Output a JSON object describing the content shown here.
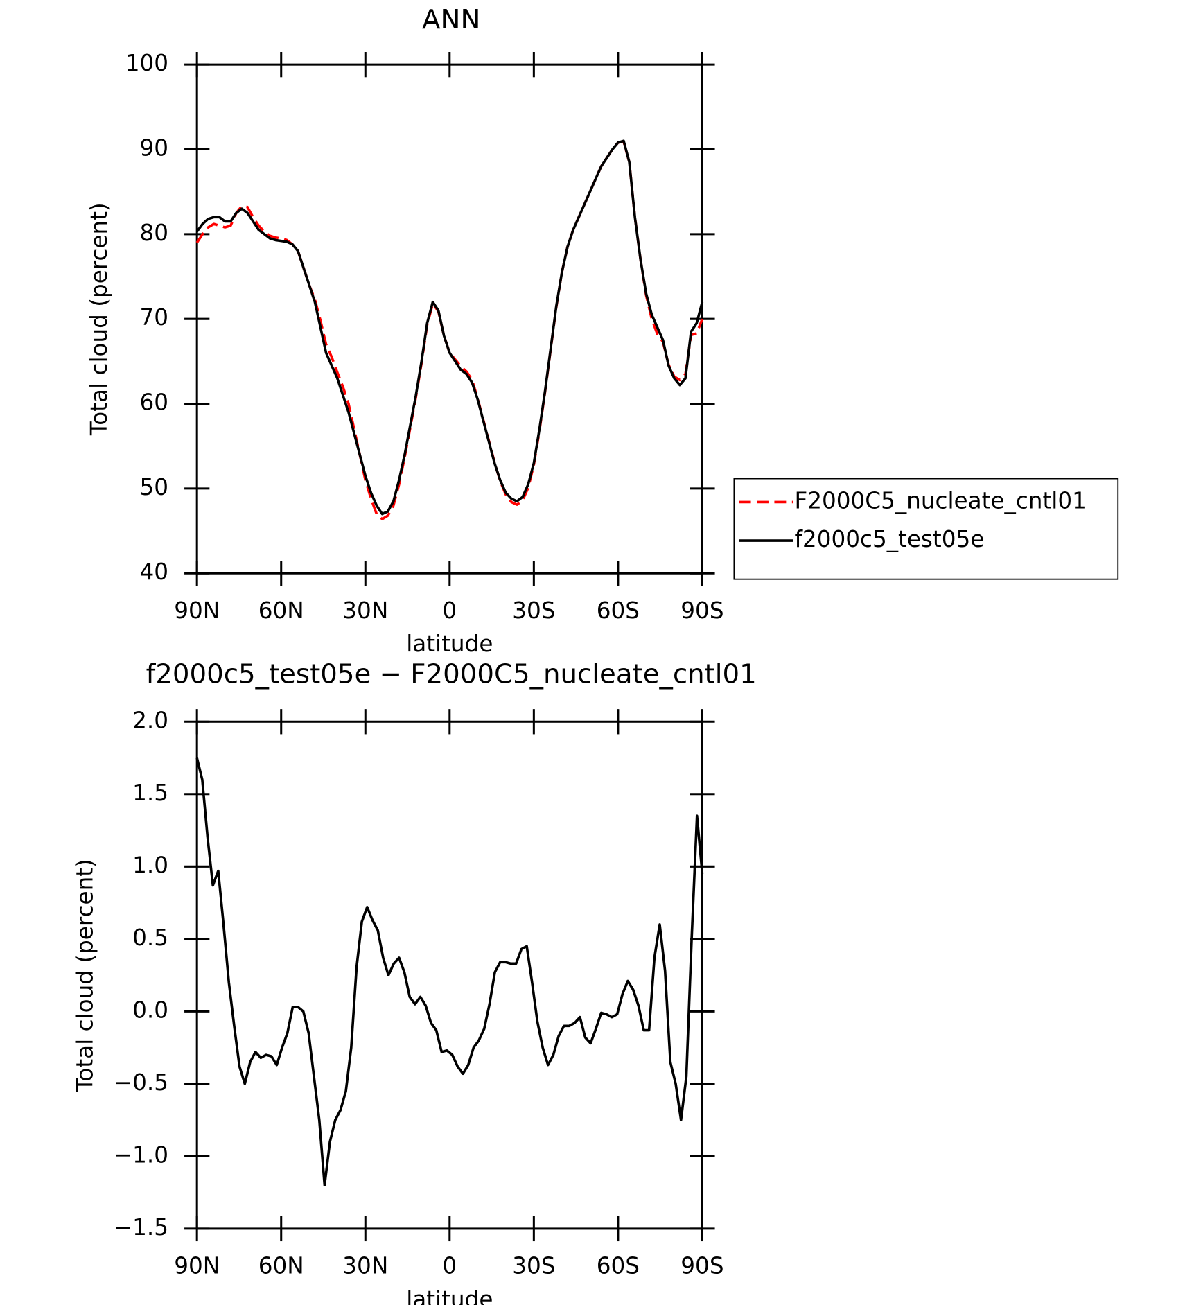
{
  "chart_data": [
    {
      "type": "line",
      "title": "ANN",
      "xlabel": "latitude",
      "ylabel": "Total cloud (percent)",
      "x": [
        90,
        88,
        86,
        84,
        82,
        80,
        78,
        76,
        74,
        72,
        70,
        68,
        66,
        64,
        62,
        60,
        58,
        56,
        54,
        52,
        50,
        48,
        46,
        44,
        42,
        40,
        38,
        36,
        34,
        32,
        30,
        28,
        26,
        24,
        22,
        20,
        18,
        16,
        14,
        12,
        10,
        8,
        6,
        4,
        2,
        0,
        -2,
        -4,
        -6,
        -8,
        -10,
        -12,
        -14,
        -16,
        -18,
        -20,
        -22,
        -24,
        -26,
        -28,
        -30,
        -32,
        -34,
        -36,
        -38,
        -40,
        -42,
        -44,
        -46,
        -48,
        -50,
        -52,
        -54,
        -56,
        -58,
        -60,
        -62,
        -64,
        -66,
        -68,
        -70,
        -72,
        -74,
        -76,
        -78,
        -80,
        -82,
        -84,
        -86,
        -88,
        -90
      ],
      "series": [
        {
          "name": "F2000C5_nucleate_cntl01",
          "color": "#ff0000",
          "dash": true,
          "values": [
            79,
            80,
            80.8,
            81.2,
            81,
            80.8,
            81,
            82.5,
            83.3,
            83.2,
            82,
            81,
            80.3,
            79.8,
            79.6,
            79.5,
            79.3,
            78.8,
            78,
            76,
            74,
            72.3,
            69.8,
            67,
            65.5,
            63.7,
            62,
            60,
            57,
            54,
            51,
            48.8,
            47,
            46.4,
            46.8,
            48,
            50.5,
            53.7,
            57.2,
            60.8,
            64.8,
            69.3,
            71.8,
            70.9,
            68,
            66,
            65.2,
            64.4,
            63.8,
            62.8,
            60.6,
            58.1,
            55.6,
            53.1,
            50.9,
            49.3,
            48.4,
            48.1,
            48.6,
            50.1,
            52.8,
            56.8,
            61.4,
            66.4,
            71.4,
            75.5,
            78.5,
            80.5,
            82,
            83.5,
            85,
            86.5,
            88,
            89,
            90,
            90.8,
            90.9,
            88.5,
            82,
            77,
            72.8,
            70,
            68.2,
            67.3,
            64.6,
            63.2,
            62.8,
            63.5,
            68.1,
            68.3,
            70
          ]
        },
        {
          "name": "f2000c5_test05e",
          "color": "#000000",
          "dash": false,
          "values": [
            80.3,
            81.2,
            81.8,
            82,
            82,
            81.5,
            81.5,
            82.5,
            83,
            82.5,
            81.5,
            80.5,
            80,
            79.5,
            79.3,
            79.2,
            79.1,
            78.8,
            78,
            76,
            74,
            72,
            69,
            66,
            64.5,
            63,
            61,
            59,
            56.5,
            54,
            51.5,
            49.5,
            48,
            47,
            47.3,
            48.5,
            51,
            54,
            57.5,
            61,
            65,
            69.5,
            72,
            71,
            68,
            66,
            65,
            64,
            63.5,
            62.5,
            60.5,
            58,
            55.5,
            53,
            51,
            49.5,
            48.8,
            48.5,
            49,
            50.5,
            53,
            57,
            61.5,
            66.5,
            71.5,
            75.5,
            78.5,
            80.5,
            82,
            83.5,
            85,
            86.5,
            88,
            89,
            90,
            90.8,
            91,
            88.5,
            82,
            77,
            73,
            70.5,
            69,
            67.5,
            64.5,
            63,
            62.2,
            63,
            68.5,
            69.5,
            72
          ]
        }
      ],
      "xlim": [
        90,
        -90
      ],
      "xticks": [
        {
          "value": 90,
          "label": "90N"
        },
        {
          "value": 60,
          "label": "60N"
        },
        {
          "value": 30,
          "label": "30N"
        },
        0,
        {
          "value": -30,
          "label": "30S"
        },
        {
          "value": -60,
          "label": "60S"
        },
        {
          "value": -90,
          "label": "90S"
        }
      ],
      "ylim": [
        40,
        100
      ],
      "yticks": [
        40,
        50,
        60,
        70,
        80,
        90,
        100
      ],
      "legend": "outside right",
      "grid": false
    },
    {
      "type": "line",
      "title": "f2000c5_test05e − F2000C5_nucleate_cntl01",
      "xlabel": "latitude",
      "ylabel": "Total cloud (percent)",
      "x": [
        90,
        88.11,
        86.21,
        84.32,
        82.42,
        80.53,
        78.63,
        76.74,
        74.84,
        72.95,
        71.05,
        69.16,
        67.26,
        65.37,
        63.47,
        61.58,
        59.68,
        57.79,
        55.89,
        54,
        52.11,
        50.21,
        48.32,
        46.42,
        44.53,
        42.63,
        40.74,
        38.84,
        36.95,
        35.05,
        33.16,
        31.26,
        29.37,
        27.47,
        25.58,
        23.68,
        21.79,
        19.89,
        18,
        16.11,
        14.21,
        12.32,
        10.42,
        8.53,
        6.63,
        4.74,
        2.84,
        0.95,
        -0.95,
        -2.84,
        -4.74,
        -6.63,
        -8.53,
        -10.42,
        -12.32,
        -14.21,
        -16.11,
        -18,
        -19.89,
        -21.79,
        -23.68,
        -25.58,
        -27.47,
        -29.37,
        -31.26,
        -33.16,
        -35.05,
        -36.95,
        -38.84,
        -40.74,
        -42.63,
        -44.53,
        -46.42,
        -48.32,
        -50.21,
        -52.11,
        -54,
        -55.89,
        -57.79,
        -59.68,
        -61.58,
        -63.47,
        -65.37,
        -67.26,
        -69.16,
        -71.05,
        -72.95,
        -74.84,
        -76.74,
        -78.63,
        -80.53,
        -82.42,
        -84.32,
        -86.21,
        -88.11,
        -90
      ],
      "series": [
        {
          "color": "#000000",
          "dash": false,
          "values": [
            1.75,
            1.6,
            1.2,
            0.87,
            0.97,
            0.6,
            0.2,
            -0.1,
            -0.38,
            -0.5,
            -0.35,
            -0.28,
            -0.32,
            -0.3,
            -0.31,
            -0.37,
            -0.25,
            -0.15,
            0.03,
            0.03,
            0.0,
            -0.15,
            -0.45,
            -0.75,
            -1.2,
            -0.9,
            -0.75,
            -0.68,
            -0.55,
            -0.25,
            0.3,
            0.62,
            0.72,
            0.63,
            0.56,
            0.37,
            0.25,
            0.33,
            0.37,
            0.27,
            0.1,
            0.05,
            0.1,
            0.04,
            -0.08,
            -0.13,
            -0.28,
            -0.27,
            -0.3,
            -0.38,
            -0.43,
            -0.37,
            -0.25,
            -0.2,
            -0.12,
            0.05,
            0.27,
            0.34,
            0.34,
            0.33,
            0.33,
            0.43,
            0.45,
            0.2,
            -0.07,
            -0.25,
            -0.37,
            -0.3,
            -0.17,
            -0.1,
            -0.1,
            -0.08,
            -0.04,
            -0.18,
            -0.22,
            -0.12,
            -0.01,
            -0.02,
            -0.04,
            -0.02,
            0.12,
            0.21,
            0.15,
            0.04,
            -0.13,
            -0.13,
            0.37,
            0.6,
            0.28,
            -0.35,
            -0.5,
            -0.75,
            -0.45,
            0.5,
            1.35,
            0.95
          ]
        }
      ],
      "xlim": [
        90,
        -90
      ],
      "xticks": [
        {
          "value": 90,
          "label": "90N"
        },
        {
          "value": 60,
          "label": "60N"
        },
        {
          "value": 30,
          "label": "30N"
        },
        0,
        {
          "value": -30,
          "label": "30S"
        },
        {
          "value": -60,
          "label": "60S"
        },
        {
          "value": -90,
          "label": "90S"
        }
      ],
      "ylim": [
        -1.5,
        2
      ],
      "yticks": [
        {
          "value": -1.5,
          "label": "−1.5"
        },
        {
          "value": -1,
          "label": "−1.0"
        },
        {
          "value": -0.5,
          "label": "−0.5"
        },
        {
          "value": 0,
          "label": "0.0"
        },
        0.5,
        {
          "value": 1,
          "label": "1.0"
        },
        1.5,
        {
          "value": 2,
          "label": "2.0"
        }
      ],
      "grid": false
    }
  ]
}
